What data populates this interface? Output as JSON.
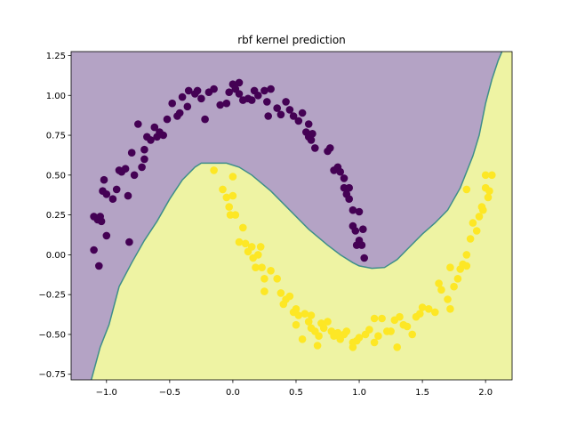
{
  "chart_data": {
    "type": "scatter",
    "title": "rbf kernel prediction",
    "xlabel": "",
    "ylabel": "",
    "xlim": [
      -1.28,
      2.21
    ],
    "ylim": [
      -0.785,
      1.275
    ],
    "grid": false,
    "legend": "none",
    "x_ticks": [
      -1.0,
      -0.5,
      0.0,
      0.5,
      1.0,
      1.5,
      2.0
    ],
    "x_tick_labels": [
      "−1.0",
      "−0.5",
      "0.0",
      "0.5",
      "1.0",
      "1.5",
      "2.0"
    ],
    "y_ticks": [
      -0.75,
      -0.5,
      -0.25,
      0.0,
      0.25,
      0.5,
      0.75,
      1.0,
      1.25
    ],
    "y_tick_labels": [
      "−0.75",
      "−0.50",
      "−0.25",
      "0.00",
      "0.25",
      "0.50",
      "0.75",
      "1.00",
      "1.25"
    ],
    "colors": {
      "class0_point": "#440154",
      "class1_point": "#fde725",
      "class0_region": "#b4a3c5",
      "class1_region": "#eef3a3",
      "boundary": "#3e8e8a"
    },
    "decision_boundary": [
      [
        -1.12,
        -0.785
      ],
      [
        -1.05,
        -0.58
      ],
      [
        -0.98,
        -0.44
      ],
      [
        -0.9,
        -0.2
      ],
      [
        -0.8,
        -0.05
      ],
      [
        -0.7,
        0.09
      ],
      [
        -0.6,
        0.21
      ],
      [
        -0.5,
        0.35
      ],
      [
        -0.4,
        0.47
      ],
      [
        -0.3,
        0.55
      ],
      [
        -0.25,
        0.575
      ],
      [
        -0.05,
        0.575
      ],
      [
        0.05,
        0.55
      ],
      [
        0.15,
        0.5
      ],
      [
        0.3,
        0.4
      ],
      [
        0.45,
        0.28
      ],
      [
        0.6,
        0.16
      ],
      [
        0.75,
        0.06
      ],
      [
        0.85,
        0.0
      ],
      [
        0.95,
        -0.05
      ],
      [
        1.0,
        -0.07
      ],
      [
        1.1,
        -0.085
      ],
      [
        1.2,
        -0.08
      ],
      [
        1.3,
        -0.03
      ],
      [
        1.4,
        0.05
      ],
      [
        1.5,
        0.13
      ],
      [
        1.6,
        0.2
      ],
      [
        1.7,
        0.28
      ],
      [
        1.8,
        0.42
      ],
      [
        1.9,
        0.62
      ],
      [
        1.95,
        0.75
      ],
      [
        2.0,
        0.95
      ],
      [
        2.05,
        1.1
      ],
      [
        2.1,
        1.22
      ],
      [
        2.13,
        1.275
      ]
    ],
    "series": [
      {
        "class": 0,
        "points": [
          [
            -1.1,
            0.24
          ],
          [
            -1.07,
            0.22
          ],
          [
            -1.05,
            0.24
          ],
          [
            -1.1,
            0.03
          ],
          [
            -1.06,
            -0.07
          ],
          [
            -1.04,
            0.21
          ],
          [
            -1.03,
            0.4
          ],
          [
            -1.02,
            0.47
          ],
          [
            -1.0,
            0.38
          ],
          [
            -1.0,
            0.12
          ],
          [
            -0.95,
            0.35
          ],
          [
            -0.92,
            0.41
          ],
          [
            -0.9,
            0.53
          ],
          [
            -0.88,
            0.52
          ],
          [
            -0.85,
            0.54
          ],
          [
            -0.83,
            0.37
          ],
          [
            -0.8,
            0.64
          ],
          [
            -0.82,
            0.08
          ],
          [
            -0.78,
            0.5
          ],
          [
            -0.75,
            0.82
          ],
          [
            -0.72,
            0.55
          ],
          [
            -0.7,
            0.66
          ],
          [
            -0.68,
            0.74
          ],
          [
            -0.7,
            0.6
          ],
          [
            -0.65,
            0.72
          ],
          [
            -0.62,
            0.8
          ],
          [
            -0.6,
            0.74
          ],
          [
            -0.58,
            0.77
          ],
          [
            -0.55,
            0.75
          ],
          [
            -0.52,
            0.85
          ],
          [
            -0.48,
            0.95
          ],
          [
            -0.44,
            0.87
          ],
          [
            -0.42,
            0.89
          ],
          [
            -0.4,
            0.99
          ],
          [
            -0.36,
            0.93
          ],
          [
            -0.35,
            1.03
          ],
          [
            -0.3,
            1.01
          ],
          [
            -0.28,
            1.03
          ],
          [
            -0.25,
            0.98
          ],
          [
            -0.22,
            0.85
          ],
          [
            -0.19,
            1.02
          ],
          [
            -0.15,
            1.04
          ],
          [
            -0.1,
            0.94
          ],
          [
            -0.05,
            0.95
          ],
          [
            -0.03,
            1.02
          ],
          [
            0.0,
            1.07
          ],
          [
            0.02,
            1.04
          ],
          [
            0.05,
            1.08
          ],
          [
            0.05,
            1.01
          ],
          [
            0.08,
            0.97
          ],
          [
            0.12,
            0.98
          ],
          [
            0.15,
            0.97
          ],
          [
            0.17,
            1.03
          ],
          [
            0.2,
            1.0
          ],
          [
            0.25,
            1.03
          ],
          [
            0.27,
            0.96
          ],
          [
            0.28,
            0.87
          ],
          [
            0.3,
            1.04
          ],
          [
            0.35,
            0.92
          ],
          [
            0.38,
            0.88
          ],
          [
            0.42,
            0.96
          ],
          [
            0.45,
            0.91
          ],
          [
            0.48,
            0.87
          ],
          [
            0.52,
            0.84
          ],
          [
            0.55,
            0.89
          ],
          [
            0.58,
            0.77
          ],
          [
            0.6,
            0.82
          ],
          [
            0.6,
            0.74
          ],
          [
            0.62,
            0.72
          ],
          [
            0.63,
            0.76
          ],
          [
            0.65,
            0.67
          ],
          [
            0.75,
            0.65
          ],
          [
            0.77,
            0.67
          ],
          [
            0.8,
            0.53
          ],
          [
            0.83,
            0.55
          ],
          [
            0.85,
            0.52
          ],
          [
            0.88,
            0.48
          ],
          [
            0.88,
            0.42
          ],
          [
            0.9,
            0.38
          ],
          [
            0.92,
            0.42
          ],
          [
            0.92,
            0.35
          ],
          [
            0.95,
            0.28
          ],
          [
            0.95,
            0.18
          ],
          [
            0.97,
            0.15
          ],
          [
            0.98,
            0.06
          ],
          [
            1.0,
            0.27
          ],
          [
            1.0,
            0.09
          ],
          [
            1.02,
            0.06
          ],
          [
            1.03,
            0.16
          ],
          [
            1.04,
            -0.02
          ]
        ]
      },
      {
        "class": 1,
        "points": [
          [
            -0.15,
            0.53
          ],
          [
            -0.08,
            0.41
          ],
          [
            -0.05,
            0.36
          ],
          [
            -0.03,
            0.3
          ],
          [
            -0.02,
            0.25
          ],
          [
            0.0,
            0.49
          ],
          [
            0.0,
            0.37
          ],
          [
            0.02,
            0.25
          ],
          [
            0.05,
            0.08
          ],
          [
            0.08,
            0.17
          ],
          [
            0.1,
            0.07
          ],
          [
            0.12,
            0.02
          ],
          [
            0.15,
            0.05
          ],
          [
            0.16,
            -0.02
          ],
          [
            0.18,
            -0.08
          ],
          [
            0.2,
            0.0
          ],
          [
            0.22,
            0.05
          ],
          [
            0.23,
            -0.08
          ],
          [
            0.25,
            -0.15
          ],
          [
            0.25,
            -0.23
          ],
          [
            0.3,
            -0.1
          ],
          [
            0.35,
            -0.15
          ],
          [
            0.38,
            -0.24
          ],
          [
            0.4,
            -0.31
          ],
          [
            0.42,
            -0.28
          ],
          [
            0.45,
            -0.26
          ],
          [
            0.48,
            -0.36
          ],
          [
            0.5,
            -0.34
          ],
          [
            0.52,
            -0.38
          ],
          [
            0.5,
            -0.44
          ],
          [
            0.55,
            -0.53
          ],
          [
            0.57,
            -0.37
          ],
          [
            0.6,
            -0.42
          ],
          [
            0.62,
            -0.46
          ],
          [
            0.62,
            -0.38
          ],
          [
            0.65,
            -0.48
          ],
          [
            0.67,
            -0.57
          ],
          [
            0.68,
            -0.51
          ],
          [
            0.7,
            -0.43
          ],
          [
            0.72,
            -0.46
          ],
          [
            0.75,
            -0.42
          ],
          [
            0.78,
            -0.48
          ],
          [
            0.8,
            -0.51
          ],
          [
            0.83,
            -0.49
          ],
          [
            0.85,
            -0.53
          ],
          [
            0.88,
            -0.5
          ],
          [
            0.9,
            -0.48
          ],
          [
            0.95,
            -0.55
          ],
          [
            0.95,
            -0.58
          ],
          [
            0.98,
            -0.54
          ],
          [
            1.0,
            -0.52
          ],
          [
            1.05,
            -0.5
          ],
          [
            1.08,
            -0.47
          ],
          [
            1.12,
            -0.55
          ],
          [
            1.12,
            -0.4
          ],
          [
            1.15,
            -0.51
          ],
          [
            1.18,
            -0.4
          ],
          [
            1.22,
            -0.48
          ],
          [
            1.25,
            -0.48
          ],
          [
            1.28,
            -0.41
          ],
          [
            1.3,
            -0.58
          ],
          [
            1.32,
            -0.39
          ],
          [
            1.35,
            -0.44
          ],
          [
            1.38,
            -0.45
          ],
          [
            1.42,
            -0.5
          ],
          [
            1.45,
            -0.39
          ],
          [
            1.48,
            -0.37
          ],
          [
            1.5,
            -0.33
          ],
          [
            1.55,
            -0.34
          ],
          [
            1.6,
            -0.36
          ],
          [
            1.63,
            -0.18
          ],
          [
            1.65,
            -0.22
          ],
          [
            1.7,
            -0.28
          ],
          [
            1.72,
            -0.34
          ],
          [
            1.72,
            -0.08
          ],
          [
            1.75,
            -0.2
          ],
          [
            1.78,
            -0.15
          ],
          [
            1.8,
            -0.09
          ],
          [
            1.82,
            -0.06
          ],
          [
            1.85,
            -0.07
          ],
          [
            1.85,
            0.0
          ],
          [
            1.88,
            0.1
          ],
          [
            1.9,
            0.2
          ],
          [
            1.93,
            0.15
          ],
          [
            1.95,
            0.24
          ],
          [
            1.97,
            0.3
          ],
          [
            1.98,
            0.28
          ],
          [
            2.0,
            0.42
          ],
          [
            2.0,
            0.5
          ],
          [
            2.02,
            0.36
          ],
          [
            2.03,
            0.4
          ],
          [
            2.05,
            0.5
          ],
          [
            1.85,
            0.41
          ]
        ]
      }
    ]
  }
}
